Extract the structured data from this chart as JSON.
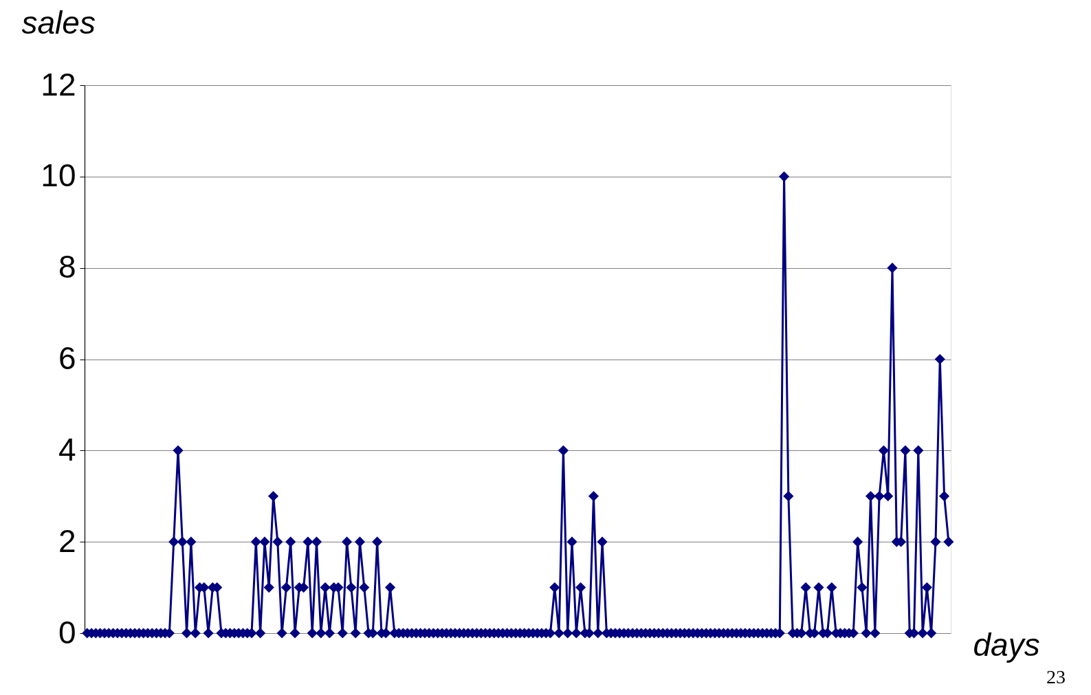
{
  "chart_data": {
    "type": "line",
    "xlabel": "days",
    "ylabel": "sales",
    "annotations": [
      "23"
    ],
    "categories": [
      null,
      null,
      null,
      null,
      null,
      null,
      null,
      null,
      null,
      null,
      null,
      null,
      null,
      null,
      null,
      null,
      null,
      null,
      null,
      null,
      null,
      null,
      null,
      null,
      null,
      null,
      null,
      null,
      null,
      null,
      null,
      null,
      null,
      null,
      null,
      null,
      null,
      null,
      null,
      null,
      null,
      null,
      null,
      null,
      null,
      null,
      null,
      null,
      null,
      null,
      null,
      null,
      null,
      null,
      null,
      null,
      null,
      null,
      null,
      null,
      null,
      null,
      null,
      null,
      null,
      null,
      null,
      null,
      null,
      null,
      null,
      null,
      null,
      null,
      null,
      null,
      null,
      null,
      null,
      null,
      null,
      null,
      null,
      null,
      null,
      null,
      null,
      null,
      null,
      null,
      null,
      null,
      null,
      null,
      null,
      null,
      null,
      null,
      null,
      null,
      null,
      null,
      null,
      null,
      null,
      null,
      null,
      null,
      null,
      null,
      null,
      null,
      null,
      null,
      null,
      null,
      null,
      null,
      null,
      null,
      null,
      null,
      null,
      null,
      null,
      null,
      null,
      null,
      null,
      null,
      null,
      null,
      null,
      null,
      null,
      null,
      null,
      null,
      null,
      null,
      null,
      null,
      null,
      null,
      null,
      null,
      null,
      null,
      null,
      null,
      null,
      null,
      null,
      null,
      null,
      null,
      null,
      null,
      null,
      null,
      null,
      null,
      null,
      null,
      null,
      null,
      null,
      null,
      null,
      null,
      null,
      null,
      null,
      null,
      null,
      null,
      null,
      null,
      null,
      null,
      null,
      null,
      null,
      null,
      null,
      null,
      null,
      null,
      null,
      null,
      null,
      null,
      null,
      null,
      null,
      null,
      null,
      null,
      null,
      null
    ],
    "series": [
      {
        "color": "#000080",
        "values": [
          0,
          0,
          0,
          0,
          0,
          0,
          0,
          0,
          0,
          0,
          0,
          0,
          0,
          0,
          0,
          0,
          0,
          0,
          0,
          0,
          2,
          4,
          2,
          0,
          2,
          0,
          1,
          1,
          0,
          1,
          1,
          0,
          0,
          0,
          0,
          0,
          0,
          0,
          0,
          2,
          0,
          2,
          1,
          3,
          2,
          0,
          1,
          2,
          0,
          1,
          1,
          2,
          0,
          2,
          0,
          1,
          0,
          1,
          1,
          0,
          2,
          1,
          0,
          2,
          1,
          0,
          0,
          2,
          0,
          0,
          1,
          0,
          0,
          0,
          0,
          0,
          0,
          0,
          0,
          0,
          0,
          0,
          0,
          0,
          0,
          0,
          0,
          0,
          0,
          0,
          0,
          0,
          0,
          0,
          0,
          0,
          0,
          0,
          0,
          0,
          0,
          0,
          0,
          0,
          0,
          0,
          0,
          0,
          1,
          0,
          4,
          0,
          2,
          0,
          1,
          0,
          0,
          3,
          0,
          2,
          0,
          0,
          0,
          0,
          0,
          0,
          0,
          0,
          0,
          0,
          0,
          0,
          0,
          0,
          0,
          0,
          0,
          0,
          0,
          0,
          0,
          0,
          0,
          0,
          0,
          0,
          0,
          0,
          0,
          0,
          0,
          0,
          0,
          0,
          0,
          0,
          0,
          0,
          0,
          0,
          0,
          10,
          3,
          0,
          0,
          0,
          1,
          0,
          0,
          1,
          0,
          0,
          1,
          0,
          0,
          0,
          0,
          0,
          2,
          1,
          0,
          3,
          0,
          3,
          4,
          3,
          8,
          2,
          2,
          4,
          0,
          0,
          4,
          0,
          1,
          0,
          2,
          6,
          3,
          2
        ]
      }
    ],
    "ylim": [
      0,
      12
    ],
    "yticks": [
      0,
      2,
      4,
      6,
      8,
      10,
      12
    ],
    "grid": "y",
    "tick_labels": "y",
    "marker": "diamond",
    "line_style": "solid"
  }
}
